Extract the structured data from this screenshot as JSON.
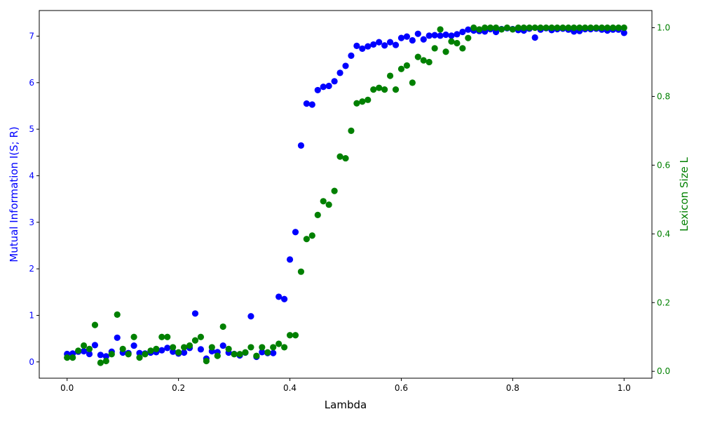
{
  "chart_data": {
    "type": "scatter",
    "xlabel": "Lambda",
    "ylabel_left": "Mutual Information I(S; R)",
    "ylabel_right": "Lexicon Size L",
    "colors": {
      "left": "#0000ff",
      "right": "#008000",
      "axis": "#000000"
    },
    "xlim": [
      -0.05,
      1.05
    ],
    "ylim_left": [
      -0.35,
      7.55
    ],
    "ylim_right": [
      -0.02,
      1.05
    ],
    "xticks": [
      "0.0",
      "0.2",
      "0.4",
      "0.6",
      "0.8",
      "1.0"
    ],
    "yticks_left": [
      "0",
      "1",
      "2",
      "3",
      "4",
      "5",
      "6",
      "7"
    ],
    "yticks_right": [
      "0.0",
      "0.2",
      "0.4",
      "0.6",
      "0.8",
      "1.0"
    ],
    "x": [
      0.0,
      0.01,
      0.02,
      0.03,
      0.04,
      0.05,
      0.06,
      0.07,
      0.08,
      0.09,
      0.1,
      0.11,
      0.12,
      0.13,
      0.14,
      0.15,
      0.16,
      0.17,
      0.18,
      0.19,
      0.2,
      0.21,
      0.22,
      0.23,
      0.24,
      0.25,
      0.26,
      0.27,
      0.28,
      0.29,
      0.3,
      0.31,
      0.32,
      0.33,
      0.34,
      0.35,
      0.36,
      0.37,
      0.38,
      0.39,
      0.4,
      0.41,
      0.42,
      0.43,
      0.44,
      0.45,
      0.46,
      0.47,
      0.48,
      0.49,
      0.5,
      0.51,
      0.52,
      0.53,
      0.54,
      0.55,
      0.56,
      0.57,
      0.58,
      0.59,
      0.6,
      0.61,
      0.62,
      0.63,
      0.64,
      0.65,
      0.66,
      0.67,
      0.68,
      0.69,
      0.7,
      0.71,
      0.72,
      0.73,
      0.74,
      0.75,
      0.76,
      0.77,
      0.78,
      0.79,
      0.8,
      0.81,
      0.82,
      0.83,
      0.84,
      0.85,
      0.86,
      0.87,
      0.88,
      0.89,
      0.9,
      0.91,
      0.92,
      0.93,
      0.94,
      0.95,
      0.96,
      0.97,
      0.98,
      0.99,
      1.0
    ],
    "series": [
      {
        "name": "Mutual Information I(S; R)",
        "axis": "left",
        "color": "#0000ff",
        "values": [
          0.17,
          0.18,
          0.22,
          0.23,
          0.17,
          0.36,
          0.15,
          0.12,
          0.22,
          0.52,
          0.2,
          0.19,
          0.35,
          0.19,
          0.18,
          0.2,
          0.21,
          0.25,
          0.3,
          0.22,
          0.18,
          0.2,
          0.3,
          1.04,
          0.27,
          0.07,
          0.23,
          0.21,
          0.35,
          0.2,
          0.17,
          0.14,
          0.2,
          0.98,
          0.11,
          0.21,
          0.19,
          0.19,
          1.4,
          1.35,
          2.2,
          2.79,
          4.65,
          5.55,
          5.53,
          5.84,
          5.91,
          5.93,
          6.03,
          6.21,
          6.36,
          6.58,
          6.79,
          6.73,
          6.78,
          6.82,
          6.87,
          6.8,
          6.87,
          6.81,
          6.96,
          6.99,
          6.91,
          7.05,
          6.93,
          7.01,
          7.02,
          7.01,
          7.03,
          7.01,
          7.04,
          7.09,
          7.14,
          7.12,
          7.11,
          7.1,
          7.15,
          7.09,
          7.15,
          7.17,
          7.15,
          7.13,
          7.12,
          7.16,
          6.97,
          7.14,
          7.17,
          7.13,
          7.15,
          7.16,
          7.14,
          7.1,
          7.11,
          7.15,
          7.15,
          7.16,
          7.14,
          7.12,
          7.14,
          7.14,
          7.07
        ]
      },
      {
        "name": "Lexicon Size L",
        "axis": "right",
        "color": "#008000",
        "values": [
          0.04,
          0.04,
          0.06,
          0.075,
          0.065,
          0.135,
          0.025,
          0.03,
          0.05,
          0.165,
          0.065,
          0.05,
          0.1,
          0.04,
          0.05,
          0.06,
          0.065,
          0.1,
          0.1,
          0.07,
          0.055,
          0.07,
          0.075,
          0.09,
          0.1,
          0.03,
          0.07,
          0.045,
          0.13,
          0.065,
          0.05,
          0.05,
          0.055,
          0.07,
          0.045,
          0.07,
          0.055,
          0.07,
          0.08,
          0.07,
          0.105,
          0.105,
          0.29,
          0.385,
          0.395,
          0.455,
          0.495,
          0.485,
          0.525,
          0.625,
          0.62,
          0.7,
          0.78,
          0.785,
          0.79,
          0.82,
          0.825,
          0.82,
          0.86,
          0.82,
          0.88,
          0.89,
          0.84,
          0.915,
          0.905,
          0.9,
          0.94,
          0.995,
          0.93,
          0.96,
          0.955,
          0.94,
          0.97,
          1.0,
          0.995,
          1.0,
          1.0,
          1.0,
          0.995,
          1.0,
          0.995,
          1.0,
          1.0,
          1.0,
          1.0,
          1.0,
          1.0,
          1.0,
          1.0,
          1.0,
          1.0,
          1.0,
          1.0,
          1.0,
          1.0,
          1.0,
          1.0,
          1.0,
          1.0,
          1.0,
          1.0
        ]
      }
    ]
  }
}
